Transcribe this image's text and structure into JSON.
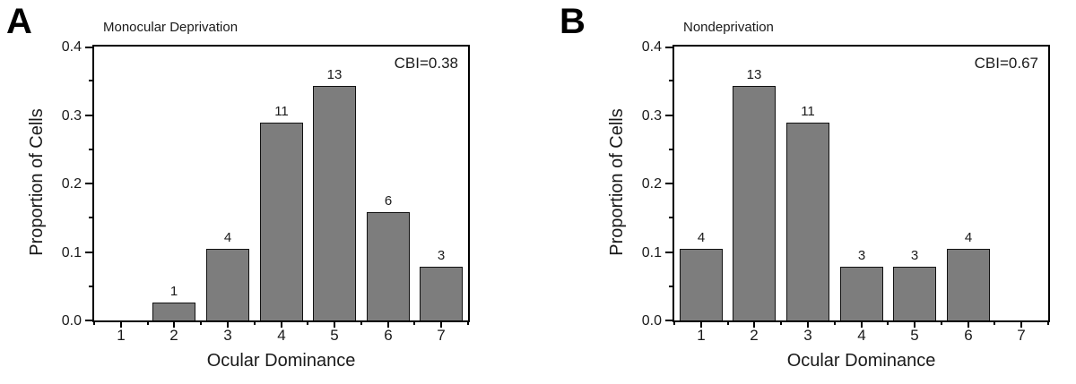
{
  "figure": {
    "background": "#ffffff",
    "text_color": "#1a1a1a"
  },
  "chart_data": [
    {
      "type": "bar",
      "panel": "A",
      "title": "Monocular Deprivation",
      "annotation": "CBI=0.38",
      "xlabel": "Ocular Dominance",
      "ylabel": "Proportion of Cells",
      "categories": [
        "1",
        "2",
        "3",
        "4",
        "5",
        "6",
        "7"
      ],
      "counts": [
        0,
        1,
        4,
        11,
        13,
        6,
        3
      ],
      "values": [
        0,
        0.026,
        0.105,
        0.289,
        0.342,
        0.158,
        0.079
      ],
      "ylim": [
        0,
        0.4
      ],
      "yticks": [
        0,
        0.1,
        0.2,
        0.3,
        0.4
      ],
      "ytick_labels": [
        "0.0",
        "0.1",
        "0.2",
        "0.3",
        "0.4"
      ],
      "y_minor_step": 0.05,
      "xlim": [
        0.5,
        7.5
      ],
      "bar_width_fraction": 0.8,
      "legend": "none",
      "grid": "off",
      "colors": {
        "bar_fill": "#7d7d7d",
        "bar_border": "#111111",
        "axis": "#000000"
      }
    },
    {
      "type": "bar",
      "panel": "B",
      "title": "Nondeprivation",
      "annotation": "CBI=0.67",
      "xlabel": "Ocular Dominance",
      "ylabel": "Proportion of Cells",
      "categories": [
        "1",
        "2",
        "3",
        "4",
        "5",
        "6",
        "7"
      ],
      "counts": [
        4,
        13,
        11,
        3,
        3,
        4,
        0
      ],
      "values": [
        0.105,
        0.342,
        0.289,
        0.079,
        0.079,
        0.105,
        0
      ],
      "ylim": [
        0,
        0.4
      ],
      "yticks": [
        0,
        0.1,
        0.2,
        0.3,
        0.4
      ],
      "ytick_labels": [
        "0.0",
        "0.1",
        "0.2",
        "0.3",
        "0.4"
      ],
      "y_minor_step": 0.05,
      "xlim": [
        0.5,
        7.5
      ],
      "bar_width_fraction": 0.8,
      "legend": "none",
      "grid": "off",
      "colors": {
        "bar_fill": "#7d7d7d",
        "bar_border": "#111111",
        "axis": "#000000"
      }
    }
  ]
}
